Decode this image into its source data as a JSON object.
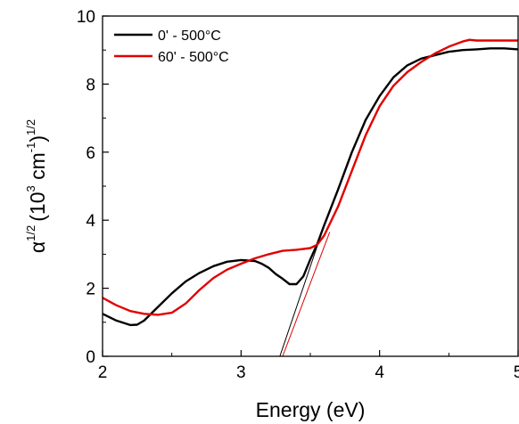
{
  "chart_data": {
    "type": "line",
    "xlabel": "Energy (eV)",
    "ylabel": {
      "alpha": "α",
      "alpha_exp": "1/2",
      "open": "(10",
      "ten_exp": "3",
      "unit": " cm",
      "unit_exp": "-1",
      "close": ")",
      "close_exp": "1/2"
    },
    "xlim": [
      2,
      5
    ],
    "ylim": [
      0,
      10
    ],
    "xticks": [
      "2",
      "3",
      "4",
      "5"
    ],
    "yticks": [
      "0",
      "2",
      "4",
      "6",
      "8",
      "10"
    ],
    "grid": false,
    "legend_position": "top-left",
    "series": [
      {
        "name": "0' - 500°C",
        "color": "#000000",
        "x": [
          2.0,
          2.1,
          2.2,
          2.25,
          2.3,
          2.4,
          2.5,
          2.6,
          2.7,
          2.8,
          2.9,
          3.0,
          3.1,
          3.15,
          3.2,
          3.25,
          3.3,
          3.35,
          3.4,
          3.45,
          3.5,
          3.55,
          3.6,
          3.7,
          3.8,
          3.9,
          4.0,
          4.1,
          4.2,
          4.3,
          4.4,
          4.5,
          4.6,
          4.7,
          4.8,
          4.9,
          5.0
        ],
        "y": [
          1.25,
          1.05,
          0.92,
          0.93,
          1.05,
          1.45,
          1.85,
          2.2,
          2.45,
          2.65,
          2.78,
          2.83,
          2.8,
          2.72,
          2.6,
          2.42,
          2.28,
          2.12,
          2.12,
          2.35,
          2.85,
          3.3,
          3.85,
          4.9,
          6.0,
          6.95,
          7.65,
          8.2,
          8.55,
          8.75,
          8.85,
          8.95,
          9.0,
          9.02,
          9.05,
          9.05,
          9.02
        ]
      },
      {
        "name": "60' - 500°C",
        "color": "#e10000",
        "x": [
          2.0,
          2.1,
          2.2,
          2.3,
          2.4,
          2.5,
          2.6,
          2.7,
          2.8,
          2.9,
          3.0,
          3.1,
          3.2,
          3.3,
          3.4,
          3.5,
          3.55,
          3.6,
          3.7,
          3.8,
          3.9,
          4.0,
          4.1,
          4.2,
          4.3,
          4.4,
          4.5,
          4.6,
          4.65,
          4.7,
          4.8,
          4.9,
          5.0
        ],
        "y": [
          1.72,
          1.5,
          1.33,
          1.25,
          1.22,
          1.28,
          1.55,
          1.95,
          2.3,
          2.55,
          2.72,
          2.88,
          3.0,
          3.1,
          3.13,
          3.18,
          3.28,
          3.55,
          4.4,
          5.45,
          6.5,
          7.35,
          7.95,
          8.35,
          8.65,
          8.9,
          9.1,
          9.25,
          9.3,
          9.28,
          9.28,
          9.28,
          9.28
        ]
      }
    ],
    "fit_lines": [
      {
        "color": "#000000",
        "x": [
          3.28,
          3.58
        ],
        "y": [
          0.0,
          3.6
        ]
      },
      {
        "color": "#e10000",
        "x": [
          3.3,
          3.64
        ],
        "y": [
          0.0,
          3.65
        ]
      }
    ]
  }
}
